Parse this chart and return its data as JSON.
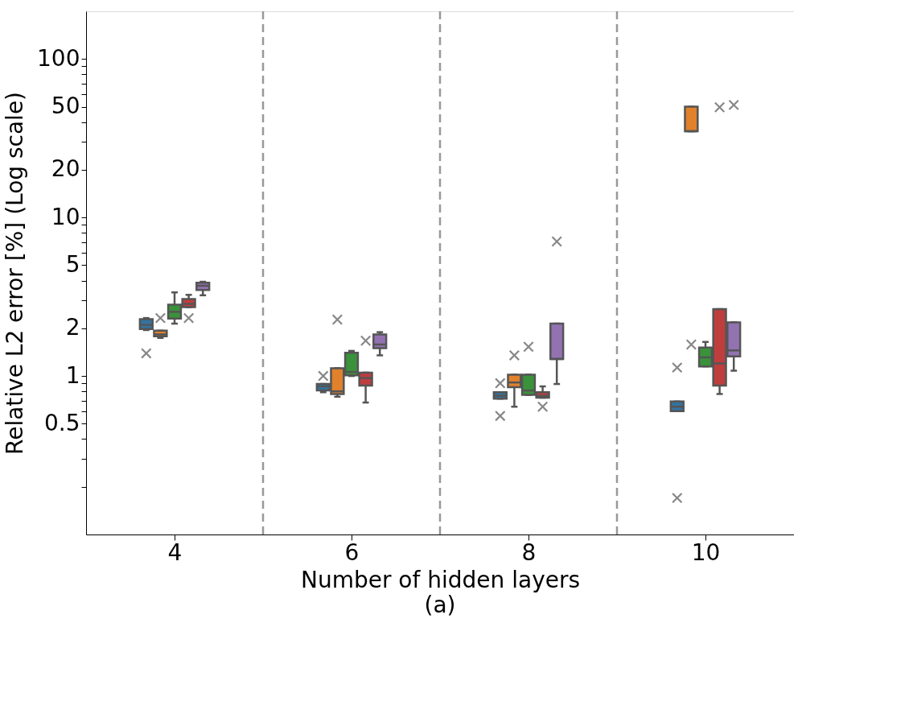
{
  "chart_data": {
    "type": "box",
    "xlabel": "Number of hidden layers",
    "ylabel": "Relative L2 error [%] (Log scale)",
    "annotations": [
      "(a)"
    ],
    "x": [
      4,
      6,
      8,
      10
    ],
    "xlim": [
      3,
      11
    ],
    "xticks": [
      4,
      6,
      8,
      10
    ],
    "ylim": [
      0.1,
      200
    ],
    "yticks": [
      {
        "value": 0.2,
        "label": null
      },
      {
        "value": 0.3,
        "label": null
      },
      {
        "value": 0.4,
        "label": null
      },
      0.5,
      {
        "value": 0.6,
        "label": null
      },
      {
        "value": 0.7,
        "label": null
      },
      {
        "value": 0.8,
        "label": null
      },
      {
        "value": 0.9,
        "label": null
      },
      1,
      2,
      {
        "value": 3,
        "label": null
      },
      {
        "value": 4,
        "label": null
      },
      5,
      {
        "value": 6,
        "label": null
      },
      {
        "value": 7,
        "label": null
      },
      {
        "value": 8,
        "label": null
      },
      {
        "value": 9,
        "label": null
      },
      10,
      20,
      {
        "value": 30,
        "label": null
      },
      {
        "value": 40,
        "label": null
      },
      50,
      {
        "value": 60,
        "label": null
      },
      {
        "value": 70,
        "label": null
      },
      {
        "value": 80,
        "label": null
      },
      {
        "value": 90,
        "label": null
      },
      100
    ],
    "log": "y",
    "grid": false,
    "legend": false,
    "marker": "cross",
    "ref_lines": [
      {
        "axis": "x",
        "value": 5,
        "color": "#999999",
        "line_style": "dashed"
      },
      {
        "axis": "x",
        "value": 7,
        "color": "#999999",
        "line_style": "dashed"
      },
      {
        "axis": "x",
        "value": 9,
        "color": "#999999",
        "line_style": "dashed"
      }
    ],
    "series": [
      {
        "color": "#3274a1",
        "boxes": [
          {
            "low": 1.95,
            "q1": 1.98,
            "median": 2.1,
            "q3": 2.28,
            "high": 2.32,
            "outliers": [
              1.39
            ]
          },
          {
            "low": 0.79,
            "q1": 0.81,
            "median": 0.86,
            "q3": 0.89,
            "high": 0.89,
            "outliers": [
              1.0
            ]
          },
          {
            "low": 0.72,
            "q1": 0.72,
            "median": 0.75,
            "q3": 0.79,
            "high": 0.79,
            "outliers": [
              0.9,
              0.56
            ]
          },
          {
            "low": 0.6,
            "q1": 0.6,
            "median": 0.64,
            "q3": 0.69,
            "high": 0.69,
            "outliers": [
              1.13,
              0.17
            ]
          }
        ]
      },
      {
        "color": "#e1812c",
        "boxes": [
          {
            "low": 1.74,
            "q1": 1.78,
            "median": 1.83,
            "q3": 1.93,
            "high": 1.93,
            "outliers": [
              2.32
            ]
          },
          {
            "low": 0.74,
            "q1": 0.77,
            "median": 0.8,
            "q3": 1.12,
            "high": 1.12,
            "outliers": [
              2.27
            ]
          },
          {
            "low": 0.64,
            "q1": 0.85,
            "median": 0.91,
            "q3": 1.02,
            "high": 1.02,
            "outliers": [
              1.35
            ]
          },
          {
            "low": 35,
            "q1": 35,
            "median": 35,
            "q3": 50,
            "high": 50,
            "outliers": [
              1.58
            ]
          }
        ]
      },
      {
        "color": "#3a923a",
        "boxes": [
          {
            "low": 2.14,
            "q1": 2.3,
            "median": 2.54,
            "q3": 2.82,
            "high": 3.37
          },
          {
            "low": 1.0,
            "q1": 1.01,
            "median": 1.06,
            "q3": 1.4,
            "high": 1.44
          },
          {
            "low": 0.76,
            "q1": 0.76,
            "median": 0.81,
            "q3": 1.02,
            "high": 1.02,
            "outliers": [
              1.53
            ]
          },
          {
            "low": 1.15,
            "q1": 1.15,
            "median": 1.31,
            "q3": 1.51,
            "high": 1.64
          }
        ]
      },
      {
        "color": "#c03d3e",
        "boxes": [
          {
            "low": 2.72,
            "q1": 2.72,
            "median": 2.85,
            "q3": 3.06,
            "high": 3.25,
            "outliers": [
              2.32
            ]
          },
          {
            "low": 0.68,
            "q1": 0.87,
            "median": 0.97,
            "q3": 1.05,
            "high": 1.05,
            "outliers": [
              1.67
            ]
          },
          {
            "low": 0.73,
            "q1": 0.73,
            "median": 0.75,
            "q3": 0.79,
            "high": 0.86,
            "outliers": [
              0.64
            ]
          },
          {
            "low": 0.77,
            "q1": 0.87,
            "median": 1.2,
            "q3": 2.64,
            "high": 2.64,
            "outliers": [
              49.6
            ]
          }
        ]
      },
      {
        "color": "#9372b2",
        "boxes": [
          {
            "low": 3.23,
            "q1": 3.49,
            "median": 3.71,
            "q3": 3.88,
            "high": 3.93
          },
          {
            "low": 1.35,
            "q1": 1.5,
            "median": 1.58,
            "q3": 1.83,
            "high": 1.89
          },
          {
            "low": 0.89,
            "q1": 1.28,
            "median": 1.28,
            "q3": 2.14,
            "high": 2.14,
            "outliers": [
              7.06
            ]
          },
          {
            "low": 1.08,
            "q1": 1.33,
            "median": 1.45,
            "q3": 2.18,
            "high": 2.18,
            "outliers": [
              51.3
            ]
          }
        ]
      }
    ]
  }
}
